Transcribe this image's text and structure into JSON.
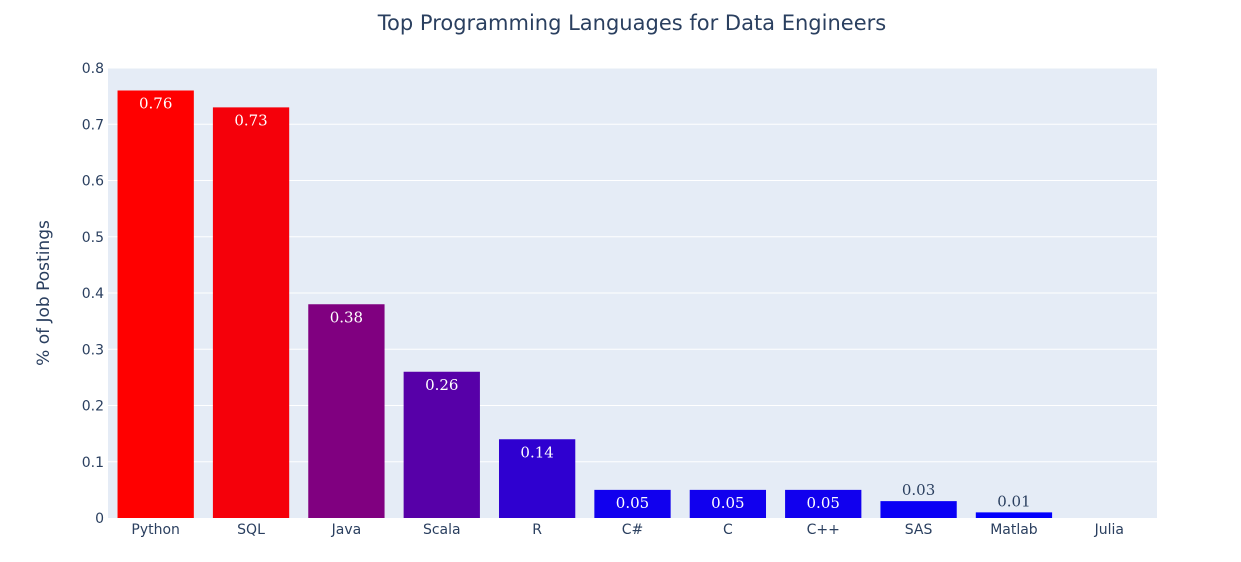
{
  "chart_data": {
    "type": "bar",
    "title": "Top Programming Languages for Data Engineers",
    "xlabel": "",
    "ylabel": "% of Job Postings",
    "categories": [
      "Python",
      "SQL",
      "Java",
      "Scala",
      "R",
      "C#",
      "C",
      "C++",
      "SAS",
      "Matlab",
      "Julia"
    ],
    "values": [
      0.76,
      0.73,
      0.38,
      0.26,
      0.14,
      0.05,
      0.05,
      0.05,
      0.03,
      0.01,
      0.0
    ],
    "data_labels": [
      "0.76",
      "0.73",
      "0.38",
      "0.26",
      "0.14",
      "0.05",
      "0.05",
      "0.05",
      "0.03",
      "0.01",
      ""
    ],
    "ylim": [
      0,
      0.8
    ],
    "yticks": [
      0,
      0.1,
      0.2,
      0.3,
      0.4,
      0.5,
      0.6,
      0.7,
      0.8
    ],
    "ytick_labels": [
      "0",
      "0.1",
      "0.2",
      "0.3",
      "0.4",
      "0.5",
      "0.6",
      "0.7",
      "0.8"
    ],
    "grid": true,
    "legend": false,
    "colorscale": {
      "low": "#0000ff",
      "high": "#ff0000"
    },
    "colors": {
      "plot_background": "#e5ecf6",
      "grid": "#ffffff",
      "text": "#2a3f5f",
      "label_inside": "#ffffff"
    }
  }
}
